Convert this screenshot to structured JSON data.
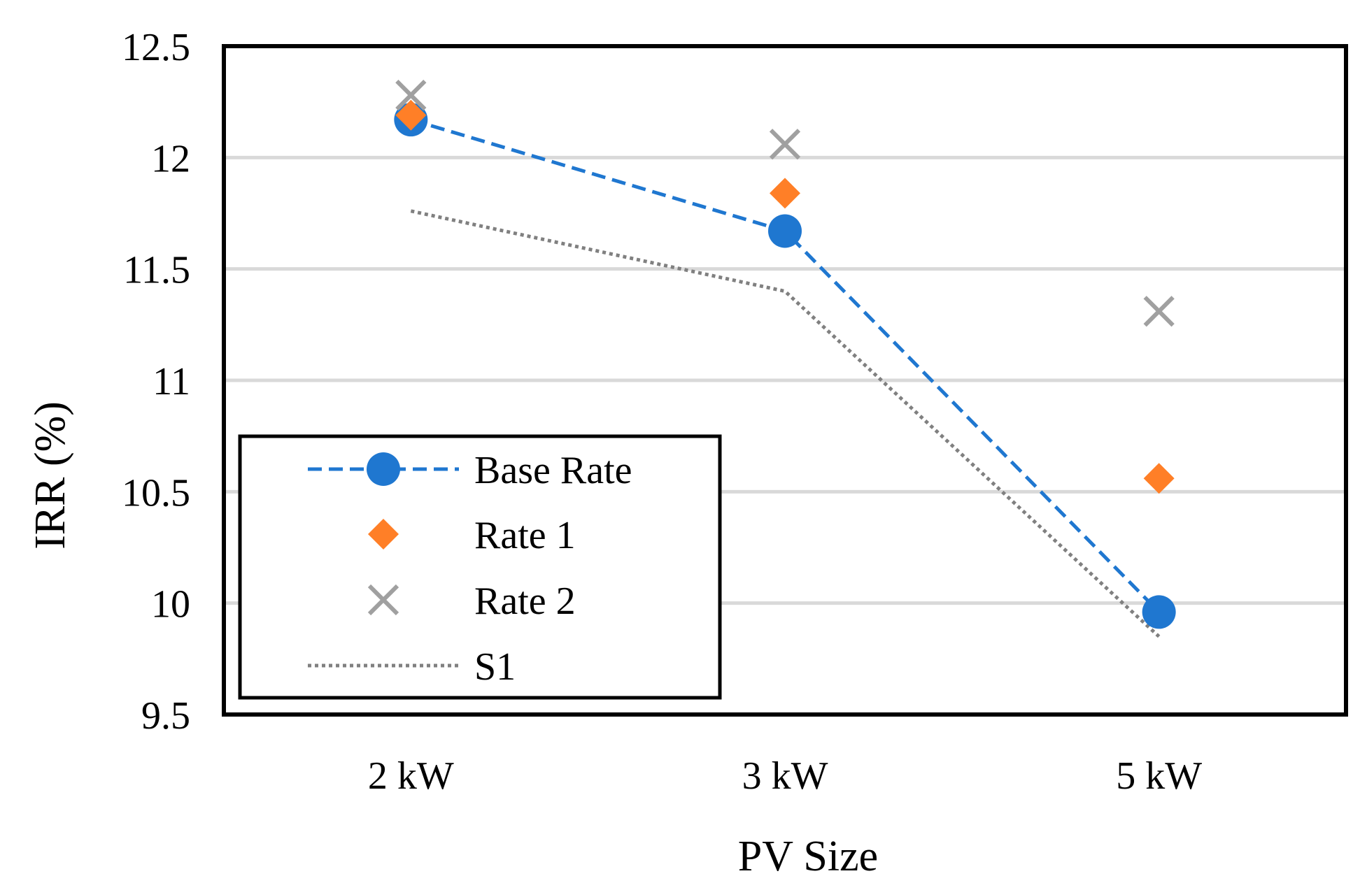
{
  "chart_data": {
    "type": "line",
    "title": "",
    "xlabel": "PV Size",
    "ylabel": "IRR (%)",
    "categories": [
      "2 kW",
      "3 kW",
      "5 kW"
    ],
    "ylim": [
      9.5,
      12.5
    ],
    "yticks": [
      9.5,
      10,
      10.5,
      11,
      11.5,
      12,
      12.5
    ],
    "ytick_labels": [
      "9.5",
      "10",
      "10.5",
      "11",
      "11.5",
      "12",
      "12.5"
    ],
    "grid": "horizontal",
    "legend_position": "bottom-left",
    "series": [
      {
        "name": "Base Rate",
        "values": [
          12.17,
          11.67,
          9.96
        ],
        "marker": "circle",
        "line": "dashed",
        "color": "#1f77d0"
      },
      {
        "name": "Rate 1",
        "values": [
          12.19,
          11.84,
          10.56
        ],
        "marker": "diamond",
        "line": "none",
        "color": "#ff7f27"
      },
      {
        "name": "Rate 2",
        "values": [
          12.28,
          12.06,
          11.31
        ],
        "marker": "x",
        "line": "none",
        "color": "#a0a0a0"
      },
      {
        "name": "S1",
        "values": [
          11.76,
          11.4,
          9.85
        ],
        "marker": "none",
        "line": "dotted",
        "color": "#808080"
      }
    ]
  }
}
